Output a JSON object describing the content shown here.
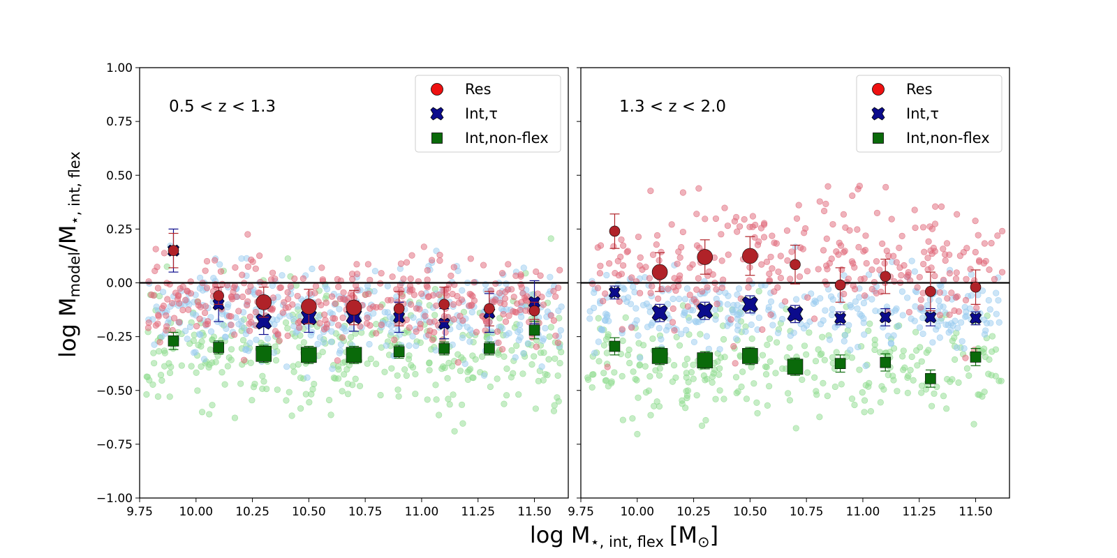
{
  "chart_data": {
    "type": "scatter",
    "xlabel_main": "log M",
    "xlabel_sub": "⋆, int, flex",
    "xlabel_unit": "[M",
    "xlabel_unit_sub": "⊙",
    "xlabel_close": "]",
    "ylabel_main": "log M",
    "ylabel_sub1": "model",
    "ylabel_mid": "/M",
    "ylabel_sub2": "⋆, int, flex",
    "xlim": [
      9.75,
      11.65
    ],
    "ylim": [
      -1.0,
      1.0
    ],
    "xticks": [
      "9.75",
      "10.00",
      "10.25",
      "10.50",
      "10.75",
      "11.00",
      "11.25",
      "11.50"
    ],
    "yticks": [
      "1.00",
      "0.75",
      "0.50",
      "0.25",
      "0.00",
      "−0.25",
      "−0.50",
      "−0.75",
      "−1.00"
    ],
    "legend": [
      {
        "label": "Res",
        "marker": "circle",
        "color": "#ee1111"
      },
      {
        "label": "Int,τ",
        "marker": "x",
        "color": "#0b0b8c"
      },
      {
        "label": "Int,non-flex",
        "marker": "square",
        "color": "#0a6a0a"
      }
    ],
    "colors": {
      "res": "#b02228",
      "int_tau": "#0b0b8c",
      "nonflex": "#0a6a0a",
      "res_scatter": "#e06678",
      "tau_scatter": "#99ccf0",
      "nonflex_scatter": "#8edc8e"
    },
    "panels": [
      {
        "label": "0.5 < z < 1.3",
        "res": [
          {
            "x": 9.9,
            "y": 0.15,
            "err": 0.08,
            "size": 1
          },
          {
            "x": 10.1,
            "y": -0.06,
            "err": 0.04,
            "size": 1
          },
          {
            "x": 10.3,
            "y": -0.09,
            "err": 0.07,
            "size": 2
          },
          {
            "x": 10.5,
            "y": -0.11,
            "err": 0.08,
            "size": 2
          },
          {
            "x": 10.7,
            "y": -0.115,
            "err": 0.08,
            "size": 2
          },
          {
            "x": 10.9,
            "y": -0.12,
            "err": 0.08,
            "size": 1
          },
          {
            "x": 11.1,
            "y": -0.1,
            "err": 0.08,
            "size": 1
          },
          {
            "x": 11.3,
            "y": -0.12,
            "err": 0.08,
            "size": 1
          },
          {
            "x": 11.5,
            "y": -0.13,
            "err": 0.04,
            "size": 1
          }
        ],
        "int_tau": [
          {
            "x": 9.9,
            "y": 0.15,
            "err": 0.1,
            "size": 1
          },
          {
            "x": 10.1,
            "y": -0.1,
            "err": 0.08,
            "size": 1
          },
          {
            "x": 10.3,
            "y": -0.18,
            "err": 0.06,
            "size": 2
          },
          {
            "x": 10.5,
            "y": -0.16,
            "err": 0.07,
            "size": 2
          },
          {
            "x": 10.7,
            "y": -0.155,
            "err": 0.07,
            "size": 2
          },
          {
            "x": 10.9,
            "y": -0.16,
            "err": 0.07,
            "size": 1
          },
          {
            "x": 11.1,
            "y": -0.19,
            "err": 0.07,
            "size": 1
          },
          {
            "x": 11.3,
            "y": -0.14,
            "err": 0.09,
            "size": 1
          },
          {
            "x": 11.5,
            "y": -0.09,
            "err": 0.1,
            "size": 1
          }
        ],
        "nonflex": [
          {
            "x": 9.9,
            "y": -0.27,
            "err": 0.04,
            "size": 1
          },
          {
            "x": 10.1,
            "y": -0.3,
            "err": 0.03,
            "size": 1
          },
          {
            "x": 10.3,
            "y": -0.33,
            "err": 0.04,
            "size": 2
          },
          {
            "x": 10.5,
            "y": -0.335,
            "err": 0.04,
            "size": 2
          },
          {
            "x": 10.7,
            "y": -0.335,
            "err": 0.04,
            "size": 2
          },
          {
            "x": 10.9,
            "y": -0.32,
            "err": 0.03,
            "size": 1
          },
          {
            "x": 11.1,
            "y": -0.305,
            "err": 0.03,
            "size": 1
          },
          {
            "x": 11.3,
            "y": -0.305,
            "err": 0.03,
            "size": 1
          },
          {
            "x": 11.5,
            "y": -0.22,
            "err": 0.04,
            "size": 1
          }
        ],
        "scatter": {
          "seed": 7,
          "n": 360,
          "res_mean": -0.08,
          "res_sd": 0.1,
          "tau_mean": -0.14,
          "tau_sd": 0.1,
          "nonflex_mean": -0.32,
          "nonflex_sd": 0.14
        }
      },
      {
        "label": "1.3 < z < 2.0",
        "res": [
          {
            "x": 9.9,
            "y": 0.24,
            "err": 0.08,
            "size": 1
          },
          {
            "x": 10.1,
            "y": 0.05,
            "err": 0.09,
            "size": 2
          },
          {
            "x": 10.3,
            "y": 0.12,
            "err": 0.08,
            "size": 2
          },
          {
            "x": 10.5,
            "y": 0.125,
            "err": 0.09,
            "size": 2
          },
          {
            "x": 10.7,
            "y": 0.085,
            "err": 0.09,
            "size": 1
          },
          {
            "x": 10.9,
            "y": -0.01,
            "err": 0.08,
            "size": 1
          },
          {
            "x": 11.1,
            "y": 0.03,
            "err": 0.08,
            "size": 1
          },
          {
            "x": 11.3,
            "y": -0.04,
            "err": 0.09,
            "size": 1
          },
          {
            "x": 11.5,
            "y": -0.02,
            "err": 0.08,
            "size": 1
          }
        ],
        "int_tau": [
          {
            "x": 9.9,
            "y": -0.045,
            "err": 0.03,
            "size": 1
          },
          {
            "x": 10.1,
            "y": -0.14,
            "err": 0.04,
            "size": 2
          },
          {
            "x": 10.3,
            "y": -0.13,
            "err": 0.04,
            "size": 2
          },
          {
            "x": 10.5,
            "y": -0.1,
            "err": 0.04,
            "size": 2
          },
          {
            "x": 10.7,
            "y": -0.145,
            "err": 0.04,
            "size": 2
          },
          {
            "x": 10.9,
            "y": -0.165,
            "err": 0.03,
            "size": 1
          },
          {
            "x": 11.1,
            "y": -0.16,
            "err": 0.04,
            "size": 1
          },
          {
            "x": 11.3,
            "y": -0.16,
            "err": 0.04,
            "size": 1
          },
          {
            "x": 11.5,
            "y": -0.165,
            "err": 0.03,
            "size": 1
          }
        ],
        "nonflex": [
          {
            "x": 9.9,
            "y": -0.295,
            "err": 0.04,
            "size": 1
          },
          {
            "x": 10.1,
            "y": -0.34,
            "err": 0.04,
            "size": 2
          },
          {
            "x": 10.3,
            "y": -0.36,
            "err": 0.04,
            "size": 2
          },
          {
            "x": 10.5,
            "y": -0.34,
            "err": 0.04,
            "size": 2
          },
          {
            "x": 10.7,
            "y": -0.39,
            "err": 0.04,
            "size": 2
          },
          {
            "x": 10.9,
            "y": -0.375,
            "err": 0.04,
            "size": 1
          },
          {
            "x": 11.1,
            "y": -0.37,
            "err": 0.04,
            "size": 1
          },
          {
            "x": 11.3,
            "y": -0.445,
            "err": 0.04,
            "size": 1
          },
          {
            "x": 11.5,
            "y": -0.345,
            "err": 0.04,
            "size": 1
          }
        ],
        "scatter": {
          "seed": 19,
          "n": 300,
          "res_mean": 0.08,
          "res_sd": 0.15,
          "tau_mean": -0.12,
          "tau_sd": 0.09,
          "nonflex_mean": -0.38,
          "nonflex_sd": 0.13
        }
      }
    ]
  }
}
